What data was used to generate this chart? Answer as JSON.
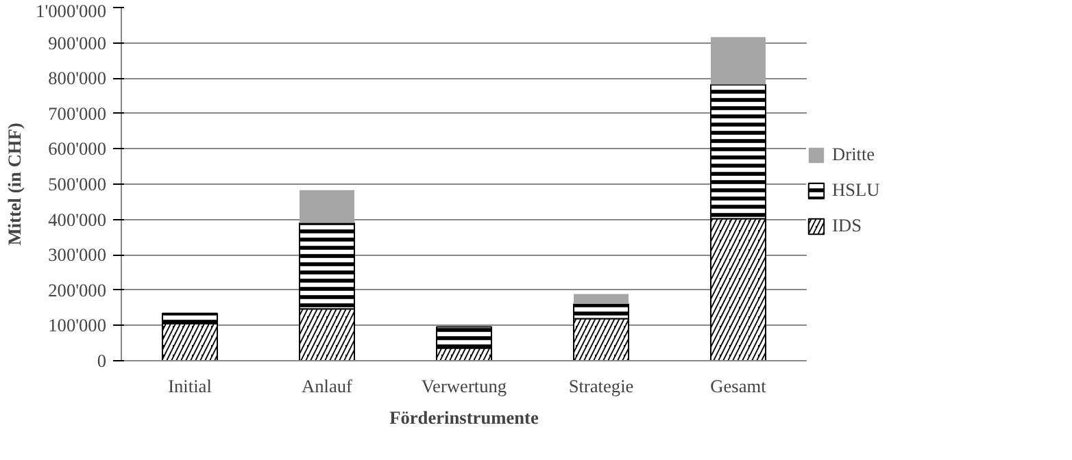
{
  "chart_data": {
    "type": "bar",
    "stacked": true,
    "xlabel": "Förderinstrumente",
    "ylabel": "Mittel (in CHF)",
    "categories": [
      "Initial",
      "Anlauf",
      "Verwertung",
      "Strategie",
      "Gesamt"
    ],
    "series": [
      {
        "name": "IDS",
        "color": "#000000",
        "values": [
          105000,
          147000,
          36000,
          119000,
          402000
        ]
      },
      {
        "name": "HSLU",
        "color": "#000000",
        "values": [
          29000,
          243000,
          60000,
          42000,
          380000
        ]
      },
      {
        "name": "Dritte",
        "color": "#a6a6a6",
        "values": [
          0,
          93000,
          0,
          28000,
          134000
        ]
      }
    ],
    "ylim": [
      0,
      1000000
    ],
    "yticks": [
      0,
      {
        "value": 100000,
        "label": "100'000"
      },
      {
        "value": 200000,
        "label": "200'000"
      },
      {
        "value": 300000,
        "label": "300'000"
      },
      {
        "value": 400000,
        "label": "400'000"
      },
      {
        "value": 500000,
        "label": "500'000"
      },
      {
        "value": 600000,
        "label": "600'000"
      },
      {
        "value": 700000,
        "label": "700'000"
      },
      {
        "value": 800000,
        "label": "800'000"
      },
      {
        "value": 900000,
        "label": "900'000"
      },
      {
        "value": 1000000,
        "label": "1'000'000"
      }
    ],
    "grid": "y",
    "legend": "right"
  }
}
